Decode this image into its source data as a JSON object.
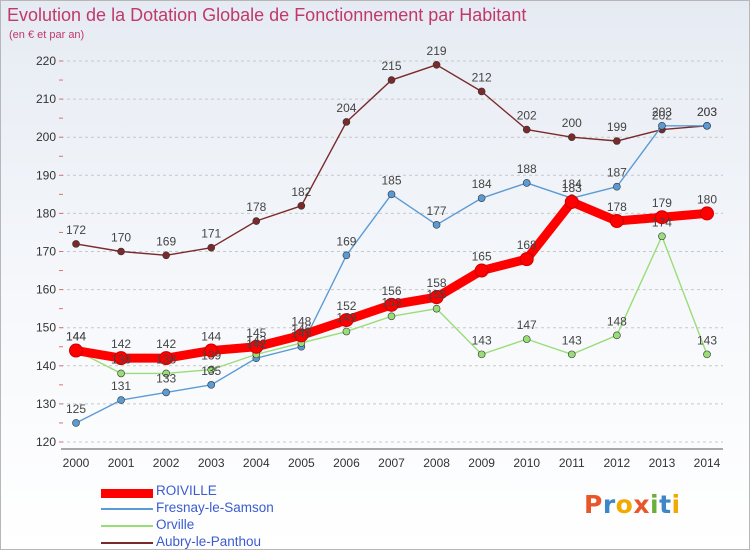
{
  "header": {
    "title": "Evolution de la Dotation Globale de Fonctionnement par Habitant",
    "subtitle": "(en € et par an)"
  },
  "brand": {
    "text": "Proxiti",
    "letters": [
      {
        "char": "P",
        "color": "#e8562a"
      },
      {
        "char": "r",
        "color": "#3e86c7"
      },
      {
        "char": "o",
        "color": "#f2a900"
      },
      {
        "char": "x",
        "color": "#e8562a"
      },
      {
        "char": "i",
        "color": "#6cae3d"
      },
      {
        "char": "t",
        "color": "#3e86c7"
      },
      {
        "char": "i",
        "color": "#f2a900"
      }
    ]
  },
  "chart_data": {
    "type": "line",
    "title": "Evolution de la Dotation Globale de Fonctionnement par Habitant",
    "subtitle": "(en € et par an)",
    "x": [
      2000,
      2001,
      2002,
      2003,
      2004,
      2005,
      2006,
      2007,
      2008,
      2009,
      2010,
      2011,
      2012,
      2013,
      2014
    ],
    "ylim": [
      120,
      220
    ],
    "yticks": [
      120,
      130,
      140,
      150,
      160,
      170,
      180,
      190,
      200,
      210,
      220
    ],
    "grid": "horizontal dashed",
    "legend_position": "bottom-left",
    "series": [
      {
        "name": "ROIVILLE",
        "color": "#ff0000",
        "values": [
          144,
          142,
          142,
          144,
          145,
          148,
          152,
          156,
          158,
          165,
          168,
          183,
          178,
          179,
          180
        ]
      },
      {
        "name": "Fresnay-le-Samson",
        "color": "#5b9bd5",
        "values": [
          125,
          131,
          133,
          135,
          142,
          145,
          169,
          185,
          177,
          184,
          188,
          184,
          187,
          203,
          203
        ]
      },
      {
        "name": "Orville",
        "color": "#99dd77",
        "values": [
          144,
          138,
          138,
          139,
          143,
          146,
          149,
          153,
          155,
          143,
          147,
          143,
          148,
          174,
          143
        ]
      },
      {
        "name": "Aubry-le-Panthou",
        "color": "#7a2a2a",
        "values": [
          172,
          170,
          169,
          171,
          178,
          182,
          204,
          215,
          219,
          212,
          202,
          200,
          199,
          202,
          203
        ]
      }
    ]
  }
}
